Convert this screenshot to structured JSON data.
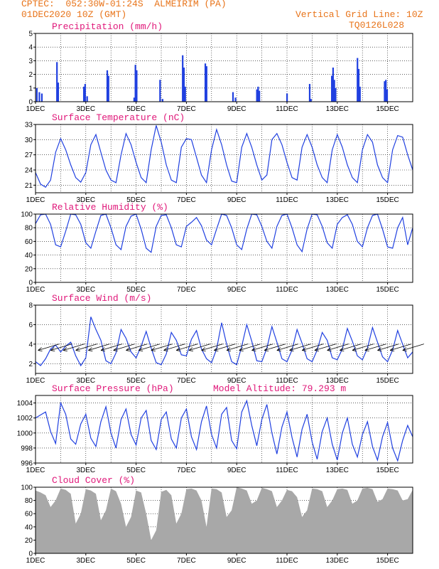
{
  "header": {
    "line1": "CPTEC:  052:30W-01:24S  ALMEIRIM (PA)",
    "line2": "01DEC2020 10Z (GMT)",
    "grid_note": "Vertical Grid Line: 10Z",
    "code": "TQ0126L028"
  },
  "colors": {
    "header": "#e8741a",
    "title": "#e0187a",
    "line": "#2040e0",
    "cloud": "#a8a8a8",
    "grid": "#000000"
  },
  "chart_data": [
    {
      "type": "bar",
      "title": "Precipitation (mm/h)",
      "ylim": [
        0,
        5
      ],
      "yticks": [
        0,
        1,
        2,
        3,
        4,
        5
      ],
      "xticks": [
        "1DEC",
        "3DEC",
        "5DEC",
        "7DEC",
        "9DEC",
        "11DEC",
        "13DEC",
        "15DEC"
      ],
      "bars": [
        [
          1.05,
          1.0
        ],
        [
          1.15,
          0.7
        ],
        [
          1.25,
          0.6
        ],
        [
          1.85,
          2.9
        ],
        [
          1.9,
          1.4
        ],
        [
          2.92,
          1.1
        ],
        [
          2.97,
          1.3
        ],
        [
          3.05,
          0.4
        ],
        [
          3.85,
          2.3
        ],
        [
          3.9,
          1.9
        ],
        [
          4.92,
          0.3
        ],
        [
          4.97,
          2.7
        ],
        [
          5.02,
          2.3
        ],
        [
          5.95,
          1.6
        ],
        [
          6.05,
          0.2
        ],
        [
          6.85,
          3.4
        ],
        [
          6.9,
          2.5
        ],
        [
          6.95,
          1.1
        ],
        [
          7.75,
          2.8
        ],
        [
          7.8,
          2.6
        ],
        [
          8.85,
          0.7
        ],
        [
          8.95,
          0.3
        ],
        [
          9.8,
          0.9
        ],
        [
          9.85,
          1.1
        ],
        [
          9.9,
          0.8
        ],
        [
          11.0,
          0.6
        ],
        [
          11.9,
          1.3
        ],
        [
          11.95,
          0.2
        ],
        [
          12.78,
          1.9
        ],
        [
          12.83,
          2.5
        ],
        [
          12.88,
          1.6
        ],
        [
          12.93,
          1.0
        ],
        [
          13.8,
          3.2
        ],
        [
          13.85,
          2.4
        ],
        [
          13.9,
          1.1
        ],
        [
          14.88,
          1.5
        ],
        [
          14.93,
          1.6
        ],
        [
          14.98,
          0.9
        ]
      ]
    },
    {
      "type": "line",
      "title": "Surface Temperature (nC)",
      "ylim": [
        19.5,
        33
      ],
      "yticks": [
        21,
        24,
        27,
        30,
        33
      ],
      "xticks": [
        "1DEC",
        "3DEC",
        "5DEC",
        "7DEC",
        "9DEC",
        "11DEC",
        "13DEC",
        "15DEC"
      ],
      "x": [
        1.0,
        1.2,
        1.4,
        1.6,
        1.8,
        2.0,
        2.2,
        2.4,
        2.6,
        2.8,
        3.0,
        3.2,
        3.4,
        3.6,
        3.8,
        4.0,
        4.2,
        4.4,
        4.6,
        4.8,
        5.0,
        5.2,
        5.4,
        5.6,
        5.8,
        6.0,
        6.2,
        6.4,
        6.6,
        6.8,
        7.0,
        7.2,
        7.4,
        7.6,
        7.8,
        8.0,
        8.2,
        8.4,
        8.6,
        8.8,
        9.0,
        9.2,
        9.4,
        9.6,
        9.8,
        10.0,
        10.2,
        10.4,
        10.6,
        10.8,
        11.0,
        11.2,
        11.4,
        11.6,
        11.8,
        12.0,
        12.2,
        12.4,
        12.6,
        12.8,
        13.0,
        13.2,
        13.4,
        13.6,
        13.8,
        14.0,
        14.2,
        14.4,
        14.6,
        14.8,
        15.0,
        15.2,
        15.4,
        15.6,
        15.8,
        16.0
      ],
      "y": [
        23.5,
        21.2,
        20.6,
        22.0,
        27.5,
        30.2,
        28.0,
        25.0,
        22.5,
        21.6,
        23.5,
        29.0,
        31.0,
        27.5,
        24.0,
        22.0,
        21.5,
        27.0,
        31.2,
        29.0,
        25.5,
        22.5,
        21.5,
        28.0,
        32.8,
        29.5,
        25.0,
        22.0,
        21.5,
        28.5,
        30.2,
        30.0,
        26.5,
        23.0,
        21.5,
        28.0,
        32.0,
        29.0,
        25.0,
        21.8,
        21.5,
        28.5,
        31.2,
        28.5,
        25.0,
        22.0,
        23.0,
        30.0,
        31.2,
        29.0,
        25.5,
        22.5,
        22.0,
        28.5,
        31.0,
        28.5,
        25.0,
        22.5,
        21.5,
        28.0,
        31.0,
        28.5,
        25.0,
        22.5,
        21.5,
        28.0,
        31.0,
        29.5,
        25.0,
        22.5,
        21.5,
        28.0,
        30.8,
        30.5,
        27.0,
        24.0
      ]
    },
    {
      "type": "line",
      "title": "Relative Humidity (%)",
      "ylim": [
        0,
        100
      ],
      "yticks": [
        0,
        20,
        40,
        60,
        80,
        100
      ],
      "xticks": [
        "1DEC",
        "3DEC",
        "5DEC",
        "7DEC",
        "9DEC",
        "11DEC",
        "13DEC",
        "15DEC"
      ],
      "x": [
        1.0,
        1.2,
        1.4,
        1.6,
        1.8,
        2.0,
        2.2,
        2.4,
        2.6,
        2.8,
        3.0,
        3.2,
        3.4,
        3.6,
        3.8,
        4.0,
        4.2,
        4.4,
        4.6,
        4.8,
        5.0,
        5.2,
        5.4,
        5.6,
        5.8,
        6.0,
        6.2,
        6.4,
        6.6,
        6.8,
        7.0,
        7.2,
        7.4,
        7.6,
        7.8,
        8.0,
        8.2,
        8.4,
        8.6,
        8.8,
        9.0,
        9.2,
        9.4,
        9.6,
        9.8,
        10.0,
        10.2,
        10.4,
        10.6,
        10.8,
        11.0,
        11.2,
        11.4,
        11.6,
        11.8,
        12.0,
        12.2,
        12.4,
        12.6,
        12.8,
        13.0,
        13.2,
        13.4,
        13.6,
        13.8,
        14.0,
        14.2,
        14.4,
        14.6,
        14.8,
        15.0,
        15.2,
        15.4,
        15.6,
        15.8,
        16.0
      ],
      "y": [
        86,
        99,
        100,
        85,
        55,
        52,
        75,
        100,
        99,
        85,
        58,
        50,
        75,
        98,
        100,
        80,
        55,
        48,
        82,
        97,
        100,
        78,
        50,
        44,
        82,
        98,
        99,
        80,
        55,
        52,
        82,
        88,
        95,
        83,
        62,
        55,
        78,
        100,
        98,
        80,
        55,
        48,
        78,
        100,
        99,
        82,
        60,
        50,
        82,
        98,
        100,
        80,
        55,
        45,
        78,
        100,
        99,
        82,
        58,
        50,
        85,
        95,
        99,
        85,
        60,
        52,
        80,
        98,
        100,
        78,
        52,
        50,
        80,
        95,
        55,
        80
      ]
    },
    {
      "type": "line",
      "title": "Surface Wind (m/s)",
      "ylim": [
        1,
        8
      ],
      "yticks": [
        2,
        4,
        6,
        8
      ],
      "xticks": [
        "1DEC",
        "3DEC",
        "5DEC",
        "7DEC",
        "9DEC",
        "11DEC",
        "13DEC",
        "15DEC"
      ],
      "x": [
        1.0,
        1.2,
        1.4,
        1.6,
        1.8,
        2.0,
        2.2,
        2.4,
        2.6,
        2.8,
        3.0,
        3.2,
        3.4,
        3.6,
        3.8,
        4.0,
        4.2,
        4.4,
        4.6,
        4.8,
        5.0,
        5.2,
        5.4,
        5.6,
        5.8,
        6.0,
        6.2,
        6.4,
        6.6,
        6.8,
        7.0,
        7.2,
        7.4,
        7.6,
        7.8,
        8.0,
        8.2,
        8.4,
        8.6,
        8.8,
        9.0,
        9.2,
        9.4,
        9.6,
        9.8,
        10.0,
        10.2,
        10.4,
        10.6,
        10.8,
        11.0,
        11.2,
        11.4,
        11.6,
        11.8,
        12.0,
        12.2,
        12.4,
        12.6,
        12.8,
        13.0,
        13.2,
        13.4,
        13.6,
        13.8,
        14.0,
        14.2,
        14.4,
        14.6,
        14.8,
        15.0,
        15.2,
        15.4,
        15.6,
        15.8,
        16.0
      ],
      "y": [
        2.2,
        1.8,
        2.5,
        3.5,
        3.9,
        3.2,
        3.8,
        4.2,
        2.8,
        1.8,
        2.6,
        6.8,
        5.5,
        4.4,
        2.3,
        2.0,
        3.1,
        5.5,
        4.6,
        3.2,
        2.6,
        3.8,
        5.3,
        3.6,
        2.1,
        1.9,
        3.0,
        5.2,
        4.4,
        2.9,
        2.8,
        4.5,
        5.4,
        3.5,
        2.5,
        2.1,
        3.5,
        6.2,
        4.0,
        2.2,
        1.9,
        3.8,
        6.0,
        4.3,
        2.3,
        2.2,
        3.6,
        5.8,
        4.2,
        2.5,
        2.2,
        3.4,
        5.5,
        4.1,
        2.5,
        2.2,
        3.4,
        5.2,
        4.4,
        2.6,
        2.4,
        3.5,
        5.6,
        4.3,
        2.8,
        2.4,
        3.6,
        5.7,
        4.2,
        2.7,
        2.2,
        3.4,
        5.4,
        4.0,
        2.6,
        3.2
      ]
    },
    {
      "type": "line",
      "title": "Surface Pressure (hPa)",
      "subtitle": "Model Altitude: 79.293 m",
      "ylim": [
        996,
        1005
      ],
      "yticks": [
        996,
        998,
        1000,
        1002,
        1004
      ],
      "xticks": [
        "1DEC",
        "3DEC",
        "5DEC",
        "7DEC",
        "9DEC",
        "11DEC",
        "13DEC",
        "15DEC"
      ],
      "x": [
        1.0,
        1.2,
        1.4,
        1.6,
        1.8,
        2.0,
        2.2,
        2.4,
        2.6,
        2.8,
        3.0,
        3.2,
        3.4,
        3.6,
        3.8,
        4.0,
        4.2,
        4.4,
        4.6,
        4.8,
        5.0,
        5.2,
        5.4,
        5.6,
        5.8,
        6.0,
        6.2,
        6.4,
        6.6,
        6.8,
        7.0,
        7.2,
        7.4,
        7.6,
        7.8,
        8.0,
        8.2,
        8.4,
        8.6,
        8.8,
        9.0,
        9.2,
        9.4,
        9.6,
        9.8,
        10.0,
        10.2,
        10.4,
        10.6,
        10.8,
        11.0,
        11.2,
        11.4,
        11.6,
        11.8,
        12.0,
        12.2,
        12.4,
        12.6,
        12.8,
        13.0,
        13.2,
        13.4,
        13.6,
        13.8,
        14.0,
        14.2,
        14.4,
        14.6,
        14.8,
        15.0,
        15.2,
        15.4,
        15.6,
        15.8,
        16.0
      ],
      "y": [
        1002.0,
        1002.4,
        1002.8,
        1000.2,
        998.6,
        1004.0,
        1002.5,
        999.2,
        998.5,
        1001.2,
        1002.5,
        999.3,
        998.2,
        1001.5,
        1003.5,
        1000.0,
        998.0,
        1001.8,
        1003.2,
        999.8,
        998.4,
        1002.0,
        1003.0,
        999.0,
        997.8,
        1001.8,
        1002.8,
        999.2,
        998.0,
        1002.0,
        1003.2,
        999.5,
        997.8,
        1001.5,
        1003.6,
        999.8,
        998.0,
        1002.5,
        1003.4,
        999.0,
        997.9,
        1002.8,
        1004.3,
        1001.0,
        998.3,
        1001.8,
        1003.8,
        1000.0,
        997.2,
        1000.8,
        1002.8,
        999.4,
        996.8,
        1000.5,
        1002.5,
        998.8,
        996.5,
        1000.2,
        1002.0,
        998.5,
        996.4,
        1000.0,
        1002.0,
        998.5,
        996.8,
        999.8,
        1001.5,
        998.2,
        996.4,
        999.5,
        1001.4,
        998.0,
        996.3,
        999.0,
        1001.0,
        999.5
      ]
    },
    {
      "type": "area",
      "title": "Cloud Cover (%)",
      "ylim": [
        0,
        100
      ],
      "yticks": [
        0,
        20,
        40,
        60,
        80,
        100
      ],
      "xticks": [
        "1DEC",
        "3DEC",
        "5DEC",
        "7DEC",
        "9DEC",
        "11DEC",
        "13DEC",
        "15DEC"
      ],
      "x": [
        1.0,
        1.2,
        1.4,
        1.6,
        1.8,
        2.0,
        2.2,
        2.4,
        2.6,
        2.8,
        3.0,
        3.2,
        3.4,
        3.6,
        3.8,
        4.0,
        4.2,
        4.4,
        4.6,
        4.8,
        5.0,
        5.2,
        5.4,
        5.6,
        5.8,
        6.0,
        6.2,
        6.4,
        6.6,
        6.8,
        7.0,
        7.2,
        7.4,
        7.6,
        7.8,
        8.0,
        8.2,
        8.4,
        8.6,
        8.8,
        9.0,
        9.2,
        9.4,
        9.6,
        9.8,
        10.0,
        10.2,
        10.4,
        10.6,
        10.8,
        11.0,
        11.2,
        11.4,
        11.6,
        11.8,
        12.0,
        12.2,
        12.4,
        12.6,
        12.8,
        13.0,
        13.2,
        13.4,
        13.6,
        13.8,
        14.0,
        14.2,
        14.4,
        14.6,
        14.8,
        15.0,
        15.2,
        15.4,
        15.6,
        15.8,
        16.0
      ],
      "y": [
        95,
        92,
        88,
        70,
        80,
        98,
        96,
        90,
        45,
        60,
        97,
        95,
        90,
        50,
        65,
        98,
        94,
        75,
        40,
        55,
        95,
        92,
        60,
        20,
        35,
        93,
        96,
        88,
        45,
        60,
        97,
        98,
        95,
        80,
        40,
        98,
        97,
        92,
        55,
        65,
        100,
        98,
        95,
        75,
        80,
        99,
        97,
        94,
        70,
        80,
        96,
        94,
        85,
        55,
        65,
        98,
        97,
        94,
        70,
        80,
        97,
        98,
        96,
        75,
        80,
        98,
        99,
        97,
        78,
        82,
        98,
        97,
        95,
        80,
        82,
        96
      ]
    }
  ]
}
